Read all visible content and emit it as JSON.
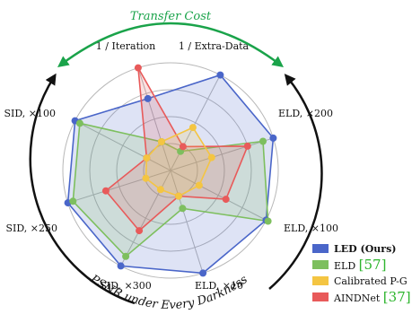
{
  "chart_data": {
    "type": "radar",
    "axes": [
      "1 / Iteration",
      "1 / Extra-Data",
      "ELD, ×200",
      "ELD, ×100",
      "ELD, ×10",
      "SID, ×300",
      "SID, ×250",
      "SID, ×100"
    ],
    "rlim": [
      0,
      1
    ],
    "grid": true,
    "legend_position": "bottom-right",
    "series": [
      {
        "name": "LED (Ours)",
        "color": "#4a66c9",
        "values": [
          0.7,
          1.0,
          1.0,
          1.0,
          1.0,
          1.0,
          1.0,
          1.0
        ]
      },
      {
        "name": "ELD",
        "color": "#7dbf5e",
        "values": [
          0.28,
          0.2,
          0.9,
          1.02,
          0.37,
          0.9,
          0.95,
          0.95
        ]
      },
      {
        "name": "Calibrated P-G",
        "color": "#f4c542",
        "values": [
          0.28,
          0.45,
          0.4,
          0.3,
          0.25,
          0.2,
          0.24,
          0.25
        ]
      },
      {
        "name": "AINDNet",
        "color": "#e85a5a",
        "values": [
          1.0,
          0.25,
          0.75,
          0.58,
          0.25,
          0.63,
          0.63,
          0.25
        ]
      }
    ],
    "legend": [
      {
        "text": "LED (Ours)",
        "bold": true,
        "ref": ""
      },
      {
        "text": "ELD ",
        "bold": false,
        "ref": "[57]"
      },
      {
        "text": "Calibrated P-G",
        "bold": false,
        "ref": ""
      },
      {
        "text": "AINDNet ",
        "bold": false,
        "ref": "[37]"
      }
    ],
    "annotations": {
      "top_arc_label": "Transfer Cost",
      "bottom_arc_label": "PSNR under Every Darkness",
      "top_arc_color": "#1aa34a",
      "bottom_arc_color": "#111111",
      "ref_color": "#2db52d"
    }
  }
}
